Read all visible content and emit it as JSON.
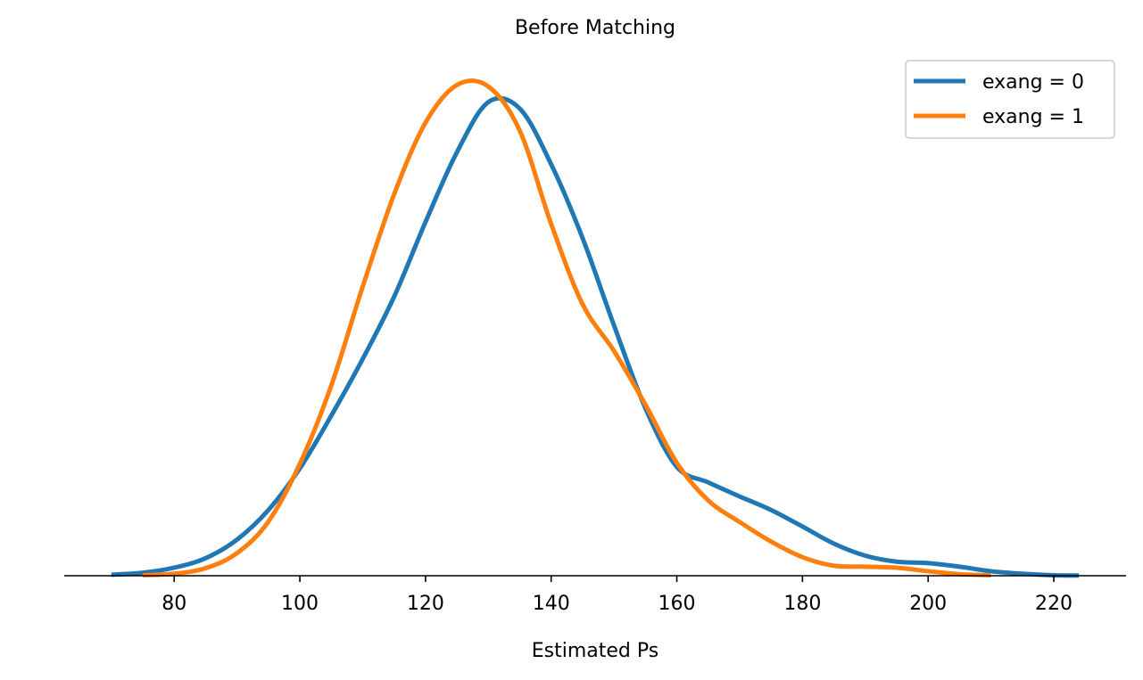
{
  "chart_data": {
    "type": "line",
    "title": "Before Matching",
    "xlabel": "Estimated Ps",
    "ylabel": "",
    "xlim": [
      62.5,
      231.5
    ],
    "ylim": [
      0,
      1.0
    ],
    "xticks": [
      80,
      100,
      120,
      140,
      160,
      180,
      200,
      220
    ],
    "xtick_labels": [
      "80",
      "100",
      "120",
      "140",
      "160",
      "180",
      "200",
      "220"
    ],
    "y_axis_visible": false,
    "grid": false,
    "legend_position": "top-right",
    "series": [
      {
        "name": "exang = 0",
        "color": "#1f77b4",
        "x": [
          70,
          75,
          80,
          85,
          90,
          95,
          100,
          105,
          110,
          115,
          120,
          125,
          130,
          135,
          140,
          145,
          150,
          155,
          160,
          165,
          170,
          175,
          180,
          185,
          190,
          195,
          200,
          205,
          210,
          215,
          220,
          224
        ],
        "y": [
          0.002,
          0.006,
          0.016,
          0.035,
          0.072,
          0.131,
          0.214,
          0.319,
          0.432,
          0.556,
          0.705,
          0.844,
          0.944,
          0.931,
          0.82,
          0.673,
          0.499,
          0.334,
          0.217,
          0.186,
          0.158,
          0.131,
          0.098,
          0.064,
          0.04,
          0.028,
          0.025,
          0.018,
          0.009,
          0.004,
          0.001,
          0.0005
        ]
      },
      {
        "name": "exang = 1",
        "color": "#ff7f0e",
        "x": [
          75,
          80,
          85,
          90,
          95,
          100,
          105,
          110,
          115,
          120,
          125,
          130,
          135,
          140,
          145,
          150,
          155,
          160,
          165,
          170,
          175,
          180,
          185,
          190,
          195,
          200,
          205,
          210
        ],
        "y": [
          0.001,
          0.004,
          0.015,
          0.045,
          0.108,
          0.223,
          0.379,
          0.576,
          0.76,
          0.903,
          0.978,
          0.975,
          0.887,
          0.701,
          0.541,
          0.448,
          0.341,
          0.225,
          0.15,
          0.107,
          0.068,
          0.037,
          0.02,
          0.018,
          0.016,
          0.009,
          0.003,
          0.001
        ]
      }
    ]
  }
}
